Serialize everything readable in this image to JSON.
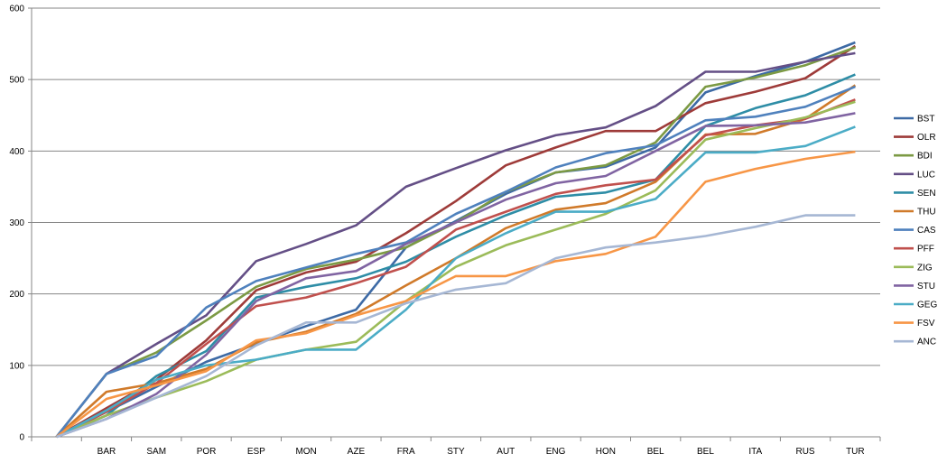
{
  "chart_data": {
    "type": "line",
    "title": "",
    "xlabel": "",
    "ylabel": "",
    "ylim": [
      0,
      600
    ],
    "yticks": [
      0,
      100,
      200,
      300,
      400,
      500,
      600
    ],
    "grid": true,
    "legend_position": "right",
    "categories": [
      "",
      "BAR",
      "SAM",
      "POR",
      "ESP",
      "MON",
      "AZE",
      "FRA",
      "STY",
      "AUT",
      "ENG",
      "HON",
      "BEL",
      "BEL",
      "ITA",
      "RUS",
      "TUR"
    ],
    "series": [
      {
        "name": "BST",
        "color": "#3d6aa5",
        "values": [
          0,
          35,
          70,
          105,
          130,
          155,
          178,
          265,
          302,
          340,
          370,
          378,
          405,
          482,
          505,
          525,
          552
        ]
      },
      {
        "name": "OLR",
        "color": "#9e3b39",
        "values": [
          0,
          40,
          80,
          135,
          205,
          230,
          245,
          285,
          330,
          380,
          405,
          428,
          428,
          467,
          483,
          502,
          547
        ]
      },
      {
        "name": "BDI",
        "color": "#7c9a44",
        "values": [
          0,
          88,
          118,
          163,
          210,
          235,
          248,
          265,
          300,
          343,
          370,
          380,
          412,
          490,
          503,
          520,
          545
        ]
      },
      {
        "name": "LUC",
        "color": "#644f86",
        "values": [
          0,
          88,
          130,
          170,
          246,
          270,
          296,
          350,
          376,
          401,
          422,
          433,
          463,
          511,
          511,
          525,
          537
        ]
      },
      {
        "name": "SEN",
        "color": "#2e8da6",
        "values": [
          0,
          30,
          85,
          120,
          195,
          210,
          222,
          245,
          280,
          310,
          336,
          342,
          360,
          435,
          460,
          478,
          507
        ]
      },
      {
        "name": "THU",
        "color": "#d07a2a",
        "values": [
          0,
          63,
          75,
          95,
          132,
          147,
          172,
          212,
          250,
          292,
          318,
          327,
          357,
          423,
          424,
          445,
          492
        ]
      },
      {
        "name": "CAS",
        "color": "#4f81bd",
        "values": [
          0,
          88,
          113,
          181,
          218,
          237,
          256,
          272,
          312,
          343,
          377,
          397,
          408,
          443,
          448,
          462,
          490
        ]
      },
      {
        "name": "PFF",
        "color": "#c0504d",
        "values": [
          0,
          35,
          75,
          130,
          183,
          195,
          215,
          238,
          290,
          315,
          340,
          352,
          360,
          422,
          436,
          445,
          472
        ]
      },
      {
        "name": "ZIG",
        "color": "#9bbb59",
        "values": [
          0,
          30,
          55,
          78,
          108,
          122,
          133,
          190,
          238,
          268,
          290,
          312,
          345,
          416,
          432,
          447,
          469
        ]
      },
      {
        "name": "STU",
        "color": "#8064a2",
        "values": [
          0,
          25,
          60,
          115,
          190,
          222,
          232,
          270,
          300,
          332,
          355,
          365,
          400,
          435,
          436,
          440,
          453
        ]
      },
      {
        "name": "GEG",
        "color": "#4bacc6",
        "values": [
          0,
          37,
          80,
          100,
          108,
          122,
          122,
          178,
          250,
          285,
          315,
          315,
          333,
          398,
          398,
          407,
          434
        ]
      },
      {
        "name": "FSV",
        "color": "#f79646",
        "values": [
          0,
          53,
          72,
          92,
          135,
          145,
          170,
          190,
          225,
          225,
          246,
          256,
          280,
          357,
          375,
          389,
          399
        ]
      },
      {
        "name": "ANC",
        "color": "#a6b7d4",
        "values": [
          0,
          25,
          55,
          85,
          128,
          160,
          160,
          187,
          206,
          215,
          250,
          265,
          272,
          281,
          294,
          310,
          310
        ]
      }
    ]
  }
}
